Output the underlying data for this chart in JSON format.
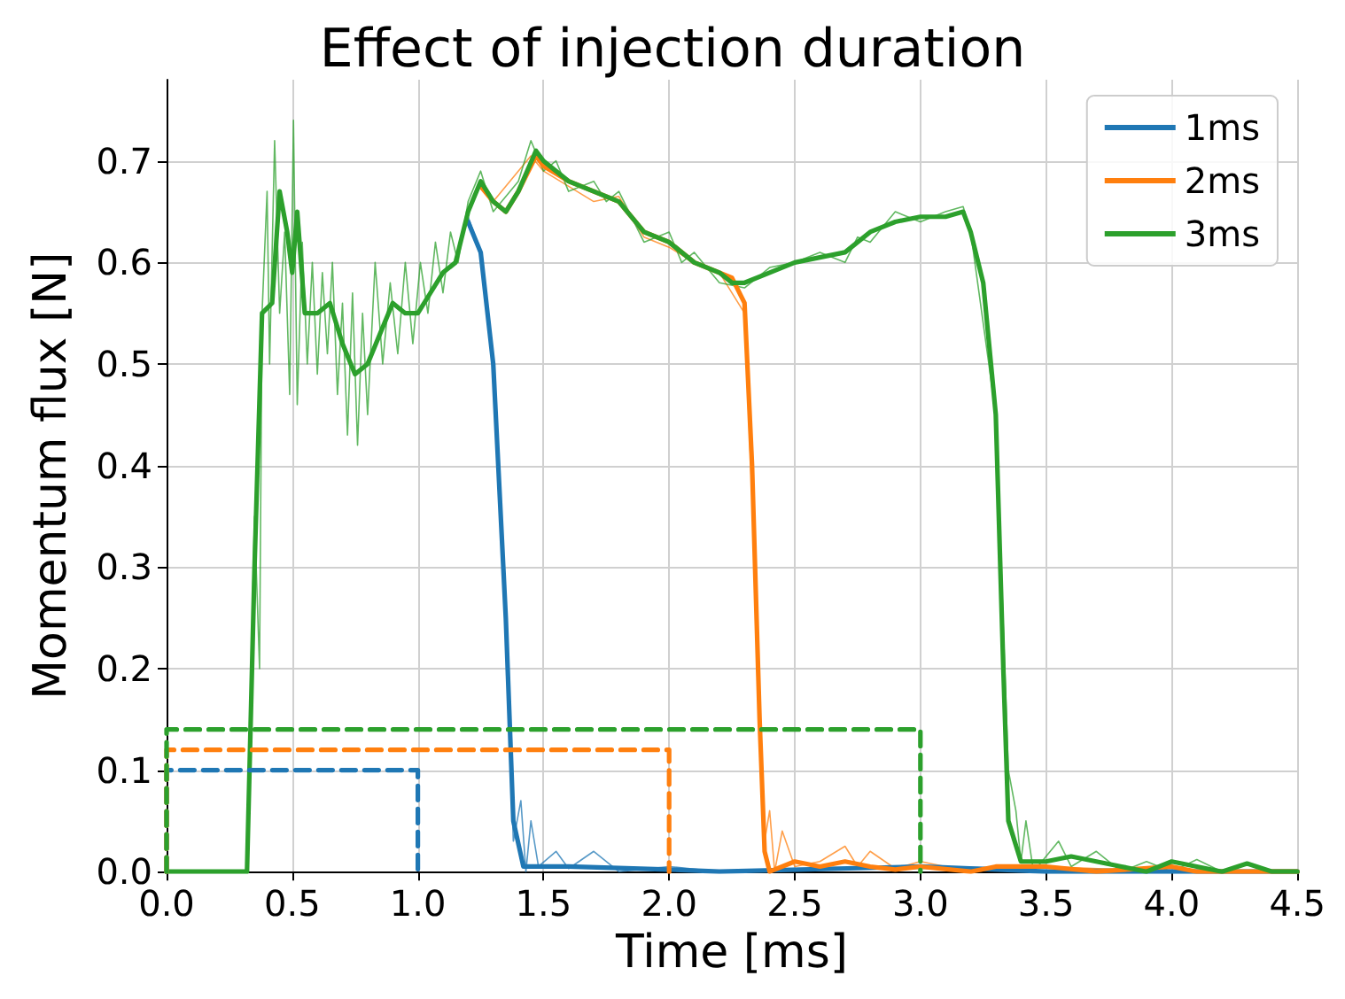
{
  "chart_data": {
    "type": "line",
    "title": "Effect of injection duration",
    "xlabel": "Time [ms]",
    "ylabel": "Momentum flux [N]",
    "xlim": [
      0,
      4.5
    ],
    "xticks": [
      {
        "value": 0,
        "label": "0.0"
      },
      0.5,
      {
        "value": 1,
        "label": "1.0"
      },
      1.5,
      {
        "value": 2,
        "label": "2.0"
      },
      2.5,
      {
        "value": 3,
        "label": "3.0"
      },
      3.5,
      {
        "value": 4,
        "label": "4.0"
      },
      4.5
    ],
    "ylim": [
      0,
      0.78
    ],
    "yticks": [
      {
        "value": 0,
        "label": "0.0"
      },
      0.1,
      0.2,
      0.3,
      0.4,
      0.5,
      0.6,
      0.7
    ],
    "grid": true,
    "legend": "top right",
    "marker": "none",
    "series": [
      {
        "color": "#1f77b4",
        "x": [
          1.2,
          1.25,
          1.3,
          1.35,
          1.38,
          1.41,
          1.43,
          1.45,
          1.48,
          1.55,
          1.6,
          1.7,
          1.8,
          2.0,
          2.2,
          3.0,
          4.5
        ],
        "values": [
          0.645,
          0.61,
          0.5,
          0.25,
          0.03,
          0.07,
          0,
          0.05,
          0.005,
          0.02,
          0.003,
          0.02,
          0,
          0.005,
          0,
          0.005,
          0
        ]
      },
      {
        "color": "#ff7f0e",
        "x": [
          1.25,
          1.3,
          1.45,
          1.5,
          1.6,
          1.7,
          1.8,
          1.9,
          2.0,
          2.1,
          2.2,
          2.3,
          2.35,
          2.38,
          2.4,
          2.42,
          2.45,
          2.5,
          2.6,
          2.7,
          2.75,
          2.8,
          2.9,
          3.0,
          3.2,
          3.5,
          4.0,
          4.5
        ],
        "values": [
          0.675,
          0.66,
          0.705,
          0.69,
          0.675,
          0.66,
          0.665,
          0.625,
          0.615,
          0.6,
          0.59,
          0.55,
          0.25,
          0.03,
          0.06,
          0,
          0.04,
          0.005,
          0.01,
          0.025,
          0.005,
          0.02,
          0.003,
          0.01,
          0,
          0.005,
          0,
          0
        ]
      },
      {
        "color": "#2ca02c",
        "x": [
          0,
          0.32,
          0.35,
          0.37,
          0.38,
          0.4,
          0.41,
          0.43,
          0.45,
          0.47,
          0.49,
          0.505,
          0.52,
          0.54,
          0.56,
          0.58,
          0.6,
          0.62,
          0.64,
          0.66,
          0.68,
          0.7,
          0.72,
          0.74,
          0.76,
          0.78,
          0.8,
          0.83,
          0.86,
          0.89,
          0.92,
          0.95,
          0.98,
          1.01,
          1.04,
          1.07,
          1.1,
          1.13,
          1.16,
          1.2,
          1.25,
          1.3,
          1.4,
          1.45,
          1.5,
          1.55,
          1.6,
          1.7,
          1.75,
          1.8,
          1.9,
          2.0,
          2.05,
          2.1,
          2.2,
          2.3,
          2.4,
          2.5,
          2.6,
          2.7,
          2.75,
          2.8,
          2.9,
          3.0,
          3.1,
          3.17,
          3.2,
          3.3,
          3.35,
          3.38,
          3.4,
          3.42,
          3.45,
          3.55,
          3.6,
          3.7,
          3.8,
          3.9,
          4.0,
          4.1,
          4.2,
          4.5
        ],
        "values": [
          0,
          0,
          0.35,
          0.2,
          0.55,
          0.67,
          0.5,
          0.72,
          0.55,
          0.63,
          0.47,
          0.74,
          0.46,
          0.62,
          0.5,
          0.6,
          0.49,
          0.59,
          0.51,
          0.6,
          0.47,
          0.56,
          0.43,
          0.57,
          0.42,
          0.55,
          0.45,
          0.6,
          0.5,
          0.58,
          0.51,
          0.6,
          0.52,
          0.6,
          0.55,
          0.62,
          0.57,
          0.63,
          0.6,
          0.66,
          0.69,
          0.65,
          0.68,
          0.72,
          0.69,
          0.7,
          0.67,
          0.68,
          0.66,
          0.67,
          0.62,
          0.63,
          0.6,
          0.61,
          0.58,
          0.575,
          0.595,
          0.6,
          0.61,
          0.6,
          0.625,
          0.62,
          0.65,
          0.64,
          0.65,
          0.655,
          0.63,
          0.45,
          0.1,
          0.06,
          0.01,
          0.05,
          0,
          0.03,
          0.005,
          0.02,
          0,
          0.01,
          0,
          0.012,
          0,
          0
        ]
      },
      {
        "name": "1ms",
        "color": "#1f77b4",
        "x": [
          1.2,
          1.25,
          1.3,
          1.35,
          1.38,
          1.42,
          1.6,
          2.0,
          2.2,
          3.0,
          3.5,
          4.5
        ],
        "values": [
          0.64,
          0.61,
          0.5,
          0.25,
          0.05,
          0.005,
          0.005,
          0.002,
          0,
          0.005,
          0,
          0
        ]
      },
      {
        "name": "2ms",
        "color": "#ff7f0e",
        "x": [
          1.25,
          1.3,
          1.35,
          1.4,
          1.47,
          1.5,
          1.6,
          1.7,
          1.8,
          1.9,
          2.0,
          2.1,
          2.2,
          2.25,
          2.3,
          2.33,
          2.36,
          2.38,
          2.4,
          2.5,
          2.6,
          2.7,
          2.8,
          2.9,
          3.0,
          3.2,
          3.3,
          3.5,
          3.7,
          4.0,
          4.1,
          4.5
        ],
        "values": [
          0.675,
          0.66,
          0.65,
          0.67,
          0.705,
          0.695,
          0.68,
          0.67,
          0.66,
          0.63,
          0.62,
          0.6,
          0.59,
          0.585,
          0.56,
          0.4,
          0.15,
          0.02,
          0,
          0.01,
          0.005,
          0.01,
          0.005,
          0.002,
          0.005,
          0,
          0.005,
          0.005,
          0,
          0.005,
          0,
          0
        ]
      },
      {
        "name": "3ms",
        "color": "#2ca02c",
        "x": [
          0,
          0.32,
          0.35,
          0.38,
          0.42,
          0.45,
          0.48,
          0.5,
          0.52,
          0.55,
          0.6,
          0.65,
          0.7,
          0.75,
          0.8,
          0.85,
          0.9,
          0.95,
          1.0,
          1.05,
          1.1,
          1.15,
          1.2,
          1.25,
          1.3,
          1.35,
          1.4,
          1.47,
          1.5,
          1.6,
          1.7,
          1.8,
          1.9,
          2.0,
          2.1,
          2.2,
          2.25,
          2.3,
          2.4,
          2.5,
          2.6,
          2.7,
          2.8,
          2.9,
          3.0,
          3.1,
          3.17,
          3.2,
          3.25,
          3.3,
          3.33,
          3.35,
          3.4,
          3.5,
          3.6,
          3.7,
          3.8,
          3.9,
          4.0,
          4.1,
          4.2,
          4.3,
          4.4,
          4.5
        ],
        "values": [
          0,
          0,
          0.3,
          0.55,
          0.56,
          0.67,
          0.63,
          0.59,
          0.65,
          0.55,
          0.55,
          0.56,
          0.52,
          0.49,
          0.5,
          0.53,
          0.56,
          0.55,
          0.55,
          0.57,
          0.59,
          0.6,
          0.65,
          0.68,
          0.66,
          0.65,
          0.67,
          0.71,
          0.7,
          0.68,
          0.67,
          0.66,
          0.63,
          0.62,
          0.6,
          0.59,
          0.58,
          0.58,
          0.59,
          0.6,
          0.605,
          0.61,
          0.63,
          0.64,
          0.645,
          0.645,
          0.65,
          0.63,
          0.58,
          0.45,
          0.2,
          0.05,
          0.01,
          0.01,
          0.015,
          0.01,
          0.005,
          0,
          0.01,
          0.005,
          0,
          0.008,
          0,
          0
        ]
      },
      {
        "color": "#1f77b4",
        "line_style": "dashed",
        "x": [
          0,
          0,
          1,
          1
        ],
        "values": [
          0,
          0.1,
          0.1,
          0
        ]
      },
      {
        "color": "#ff7f0e",
        "line_style": "dashed",
        "x": [
          0,
          0,
          2,
          2
        ],
        "values": [
          0,
          0.12,
          0.12,
          0
        ]
      },
      {
        "color": "#2ca02c",
        "line_style": "dashed",
        "x": [
          0,
          0,
          3,
          3
        ],
        "values": [
          0,
          0.14,
          0.14,
          0
        ]
      }
    ]
  }
}
